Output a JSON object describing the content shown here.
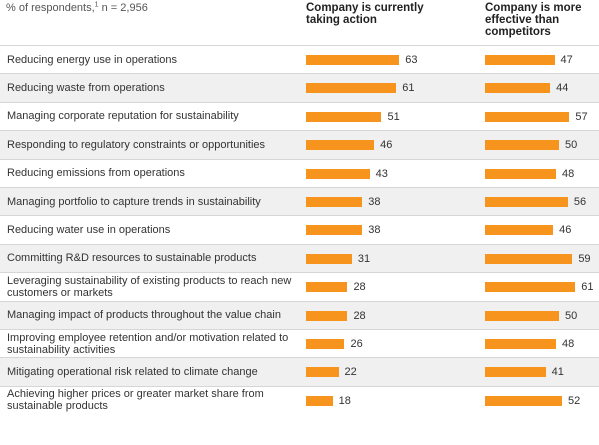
{
  "chart_data": {
    "type": "bar",
    "orientation": "horizontal",
    "subtitle_main": "% of respondents,",
    "subtitle_footnote": "1",
    "subtitle_n": " n = 2,956",
    "categories": [
      "Reducing energy use in operations",
      "Reducing waste from operations",
      "Managing corporate reputation for sustainability",
      "Responding to regulatory constraints or opportunities",
      "Reducing emissions from operations",
      "Managing portfolio to capture trends in sustainability",
      "Reducing water use in operations",
      "Committing R&D resources to sustainable products",
      "Leveraging sustainability of existing products to reach new customers or markets",
      "Managing impact of products throughout the value chain",
      "Improving employee retention and/or motivation related to sustainability activities",
      "Mitigating operational risk related to climate change",
      "Achieving higher prices or greater market share from sustainable products"
    ],
    "series": [
      {
        "name": "Company is currently taking action",
        "values": [
          63,
          61,
          51,
          46,
          43,
          38,
          38,
          31,
          28,
          28,
          26,
          22,
          18
        ]
      },
      {
        "name": "Company is more effective than competitors",
        "values": [
          47,
          44,
          57,
          50,
          48,
          56,
          46,
          59,
          61,
          50,
          48,
          41,
          52
        ]
      }
    ],
    "bar_color": "#f7941d",
    "row_shading": "alternating",
    "grid": false,
    "legend": "column headers at top"
  }
}
